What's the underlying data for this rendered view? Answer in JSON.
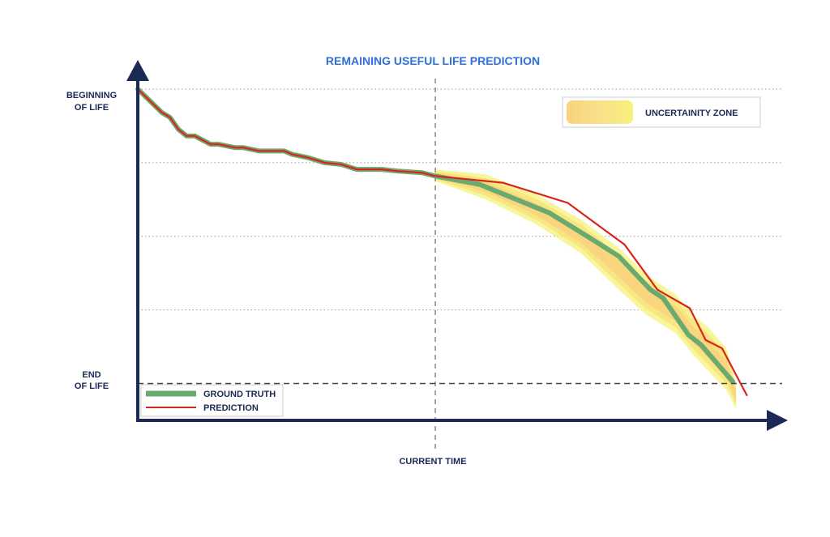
{
  "chart_data": {
    "type": "line",
    "title": "REMAINING USEFUL LIFE PREDICTION",
    "y_labels": {
      "top": [
        "BEGINNING",
        "OF LIFE"
      ],
      "bottom": [
        "END",
        "OF LIFE"
      ]
    },
    "x_marker_label": "CURRENT TIME",
    "xlim": [
      0,
      100
    ],
    "ylim": [
      0,
      100
    ],
    "current_time_x": 47,
    "end_of_life_y": 12,
    "grid": "horizontal-dotted",
    "legend": {
      "placement": "bottom-left",
      "entries": [
        {
          "key": "ground_truth",
          "label": "GROUND TRUTH"
        },
        {
          "key": "prediction",
          "label": "PREDICTION"
        }
      ]
    },
    "uncertainty_legend": {
      "placement": "top-right",
      "label": "UNCERTAINITY ZONE"
    },
    "colors": {
      "axis": "#1b2a55",
      "ground_truth": "#6aaa6e",
      "prediction": "#d9261c",
      "uncertainty_outer": "#f7f27a",
      "uncertainty_inner": "#f9d27e",
      "title": "#2f6fd6",
      "grid": "#9a9a9a"
    },
    "series": [
      {
        "key": "ground_truth",
        "x": [
          0,
          3.8,
          5.1,
          6.4,
          7.7,
          9.0,
          11.5,
          12.8,
          15.4,
          16.7,
          19.2,
          20.5,
          23.1,
          24.4,
          26.9,
          29.5,
          32.1,
          34.6,
          37.2,
          38.5,
          41.0,
          44.9,
          47.0,
          54.0,
          65.0,
          71.0,
          76.0,
          81.0,
          83.0,
          87.0,
          89.0,
          94.0
        ],
        "values": [
          100,
          93,
          91.5,
          88,
          86,
          86,
          83.5,
          83.5,
          82.5,
          82.5,
          81.5,
          81.5,
          81.5,
          80.5,
          79.5,
          78,
          77.5,
          76,
          76,
          76,
          75.5,
          75,
          74,
          71.5,
          63,
          56,
          50,
          40,
          37.5,
          26.5,
          23.5,
          12.5
        ]
      },
      {
        "key": "prediction",
        "x": [
          0,
          3.8,
          5.1,
          6.4,
          7.7,
          9.0,
          11.5,
          12.8,
          15.4,
          16.7,
          19.2,
          20.5,
          23.1,
          24.4,
          26.9,
          29.5,
          32.1,
          34.6,
          37.2,
          38.5,
          41.0,
          44.9,
          47.0,
          57.7,
          67.9,
          76.9,
          82.1,
          87.2,
          89.7,
          92.3,
          96.2
        ],
        "values": [
          100,
          93,
          91.5,
          88,
          86,
          86,
          83.5,
          83.5,
          82.5,
          82.5,
          81.5,
          81.5,
          81.5,
          80.5,
          79.5,
          78,
          77.5,
          76,
          76,
          76,
          75.5,
          75,
          74,
          72,
          66,
          53.5,
          40,
          34.5,
          25,
          22.5,
          8.5
        ]
      }
    ],
    "uncertainty_band": {
      "x": [
        47,
        55,
        63,
        70,
        76,
        80,
        85,
        88,
        90,
        93,
        94.5
      ],
      "upper": [
        76,
        74.5,
        68.5,
        61,
        52.5,
        45,
        38.5,
        32,
        29,
        22.5,
        12
      ],
      "lower": [
        72.5,
        67,
        59.5,
        51,
        40,
        33,
        27,
        20,
        16,
        10,
        4.5
      ]
    }
  }
}
